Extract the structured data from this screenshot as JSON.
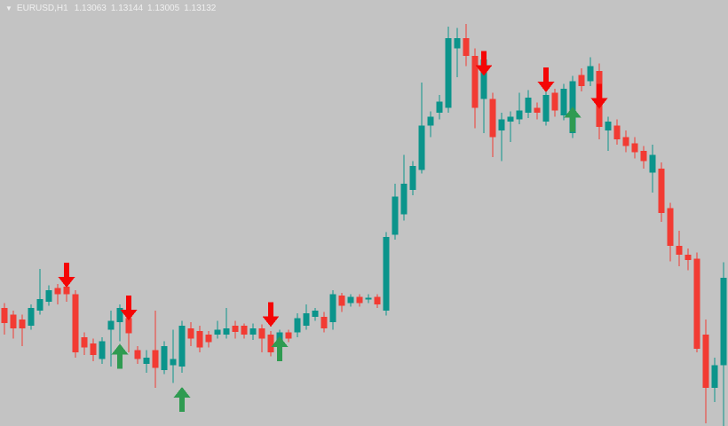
{
  "header": {
    "collapse_icon": "▼",
    "symbol_timeframe": "EURUSD,H1",
    "open": "1.13063",
    "high": "1.13144",
    "low": "1.13005",
    "close": "1.13132"
  },
  "colors": {
    "background": "#c3c3c3",
    "bull": "#0b948b",
    "bear": "#f23b33",
    "arrow_up": "#2f9b51",
    "arrow_down": "#f40606",
    "header_text": "#f0f0f0"
  },
  "chart_data": {
    "type": "candlestick",
    "symbol": "EURUSD",
    "timeframe": "H1",
    "title": "",
    "xlabel": "",
    "ylabel": "",
    "grid": false,
    "axes_visible": false,
    "legend": "none",
    "ylim": [
      1.13015,
      1.13351
    ],
    "x_start": 5,
    "x_step": 10,
    "body_width": 7,
    "columns": [
      "open",
      "high",
      "low",
      "close"
    ],
    "candles": [
      [
        1.13108,
        1.13112,
        1.13087,
        1.13096
      ],
      [
        1.13103,
        1.13106,
        1.13084,
        1.13092
      ],
      [
        1.13099,
        1.13103,
        1.13078,
        1.13092
      ],
      [
        1.13094,
        1.13111,
        1.13091,
        1.13108
      ],
      [
        1.13106,
        1.13139,
        1.13103,
        1.13115
      ],
      [
        1.13113,
        1.13126,
        1.1311,
        1.13122
      ],
      [
        1.13124,
        1.13127,
        1.13111,
        1.13119
      ],
      [
        1.13125,
        1.13128,
        1.13113,
        1.13119
      ],
      [
        1.13119,
        1.13122,
        1.13069,
        1.13073
      ],
      [
        1.13085,
        1.13089,
        1.13071,
        1.13077
      ],
      [
        1.1308,
        1.13084,
        1.13066,
        1.13071
      ],
      [
        1.13068,
        1.13085,
        1.13064,
        1.13082
      ],
      [
        1.13091,
        1.13106,
        1.13062,
        1.13098
      ],
      [
        1.13097,
        1.13111,
        1.13082,
        1.13108
      ],
      [
        1.131,
        1.13104,
        1.13073,
        1.13088
      ],
      [
        1.13075,
        1.13078,
        1.13064,
        1.13068
      ],
      [
        1.13064,
        1.13075,
        1.13057,
        1.13069
      ],
      [
        1.13075,
        1.13106,
        1.13045,
        1.13061
      ],
      [
        1.13059,
        1.13082,
        1.13056,
        1.13078
      ],
      [
        1.13063,
        1.13091,
        1.13049,
        1.13068
      ],
      [
        1.13062,
        1.13098,
        1.13057,
        1.13094
      ],
      [
        1.13092,
        1.13097,
        1.13078,
        1.13084
      ],
      [
        1.1309,
        1.13094,
        1.13073,
        1.13077
      ],
      [
        1.13087,
        1.1309,
        1.13077,
        1.13081
      ],
      [
        1.13087,
        1.13098,
        1.13084,
        1.13091
      ],
      [
        1.13087,
        1.13108,
        1.13084,
        1.13092
      ],
      [
        1.13094,
        1.13098,
        1.13084,
        1.13089
      ],
      [
        1.13094,
        1.13096,
        1.13084,
        1.13087
      ],
      [
        1.13087,
        1.13096,
        1.13083,
        1.13092
      ],
      [
        1.13092,
        1.13095,
        1.13073,
        1.13084
      ],
      [
        1.13087,
        1.1309,
        1.1307,
        1.13073
      ],
      [
        1.13083,
        1.13091,
        1.1308,
        1.13089
      ],
      [
        1.13089,
        1.13091,
        1.13081,
        1.13084
      ],
      [
        1.13089,
        1.13104,
        1.13085,
        1.131
      ],
      [
        1.13094,
        1.13111,
        1.13091,
        1.13104
      ],
      [
        1.13101,
        1.13108,
        1.13098,
        1.13106
      ],
      [
        1.13101,
        1.13105,
        1.13089,
        1.13092
      ],
      [
        1.13097,
        1.13122,
        1.13091,
        1.13119
      ],
      [
        1.13118,
        1.1312,
        1.13105,
        1.1311
      ],
      [
        1.13112,
        1.13119,
        1.13109,
        1.13117
      ],
      [
        1.13117,
        1.13119,
        1.13109,
        1.13112
      ],
      [
        1.13115,
        1.13119,
        1.13112,
        1.13116
      ],
      [
        1.13117,
        1.13119,
        1.13108,
        1.13111
      ],
      [
        1.13106,
        1.13168,
        1.13102,
        1.13164
      ],
      [
        1.13166,
        1.13206,
        1.13162,
        1.13196
      ],
      [
        1.13182,
        1.13229,
        1.13177,
        1.13206
      ],
      [
        1.13201,
        1.13224,
        1.13197,
        1.1322
      ],
      [
        1.13217,
        1.13286,
        1.13214,
        1.13252
      ],
      [
        1.13252,
        1.13263,
        1.13243,
        1.13259
      ],
      [
        1.13262,
        1.13276,
        1.13257,
        1.13271
      ],
      [
        1.13266,
        1.1333,
        1.13262,
        1.13321
      ],
      [
        1.13313,
        1.13329,
        1.1329,
        1.13321
      ],
      [
        1.13321,
        1.13332,
        1.13299,
        1.13307
      ],
      [
        1.13307,
        1.13313,
        1.1325,
        1.13266
      ],
      [
        1.13273,
        1.13308,
        1.13246,
        1.13304
      ],
      [
        1.13273,
        1.13278,
        1.13227,
        1.13243
      ],
      [
        1.13248,
        1.13262,
        1.13224,
        1.13257
      ],
      [
        1.13255,
        1.13263,
        1.13239,
        1.13259
      ],
      [
        1.13257,
        1.13278,
        1.13253,
        1.13264
      ],
      [
        1.13262,
        1.1328,
        1.13258,
        1.13274
      ],
      [
        1.13266,
        1.1327,
        1.13257,
        1.13262
      ],
      [
        1.13255,
        1.13281,
        1.13252,
        1.13276
      ],
      [
        1.13278,
        1.13281,
        1.13259,
        1.13264
      ],
      [
        1.1326,
        1.13285,
        1.13256,
        1.13281
      ],
      [
        1.13246,
        1.13291,
        1.13242,
        1.13287
      ],
      [
        1.13292,
        1.13297,
        1.13279,
        1.13283
      ],
      [
        1.13287,
        1.13306,
        1.13283,
        1.13299
      ],
      [
        1.13295,
        1.13301,
        1.13241,
        1.13251
      ],
      [
        1.13248,
        1.13259,
        1.13232,
        1.13255
      ],
      [
        1.13252,
        1.13257,
        1.13237,
        1.13241
      ],
      [
        1.13243,
        1.13248,
        1.13231,
        1.13236
      ],
      [
        1.13238,
        1.13243,
        1.13226,
        1.13231
      ],
      [
        1.13232,
        1.13236,
        1.13218,
        1.13224
      ],
      [
        1.13215,
        1.13237,
        1.13199,
        1.13229
      ],
      [
        1.13218,
        1.13223,
        1.13176,
        1.13183
      ],
      [
        1.13187,
        1.13191,
        1.13145,
        1.13157
      ],
      [
        1.13157,
        1.13169,
        1.13141,
        1.1315
      ],
      [
        1.1315,
        1.13155,
        1.13138,
        1.13146
      ],
      [
        1.13147,
        1.13152,
        1.13073,
        1.13076
      ],
      [
        1.13087,
        1.13099,
        1.13017,
        1.13045
      ],
      [
        1.13045,
        1.13069,
        1.13034,
        1.13063
      ],
      [
        1.13063,
        1.13144,
        1.13005,
        1.13132
      ]
    ],
    "signals": [
      {
        "index": 7,
        "dir": "down",
        "price": 1.13134
      },
      {
        "index": 13,
        "dir": "up",
        "price": 1.1307
      },
      {
        "index": 14,
        "dir": "down",
        "price": 1.13108
      },
      {
        "index": 20,
        "dir": "up",
        "price": 1.13036
      },
      {
        "index": 30,
        "dir": "down",
        "price": 1.13103
      },
      {
        "index": 31,
        "dir": "up",
        "price": 1.13076
      },
      {
        "index": 54,
        "dir": "down",
        "price": 1.13301
      },
      {
        "index": 61,
        "dir": "down",
        "price": 1.13288
      },
      {
        "index": 64,
        "dir": "up",
        "price": 1.13257
      },
      {
        "index": 67,
        "dir": "down",
        "price": 1.13275
      }
    ]
  }
}
